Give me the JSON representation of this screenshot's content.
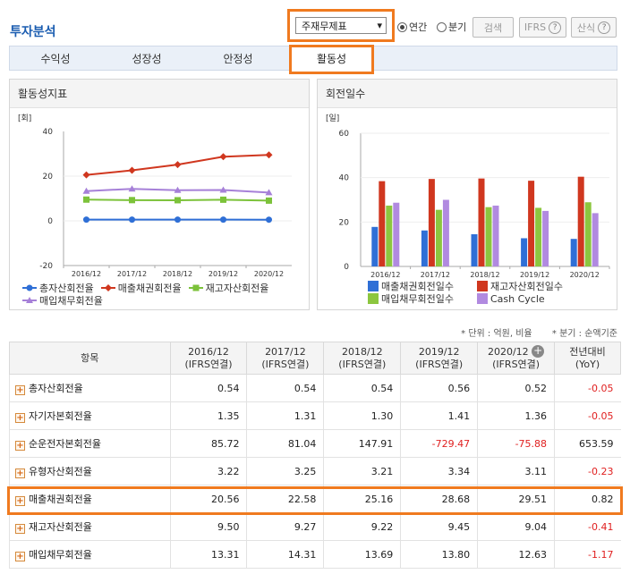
{
  "header": {
    "title": "투자분석",
    "select_value": "주재무제표",
    "radio_annual": "연간",
    "radio_quarter": "분기",
    "search_label": "검색",
    "ifrs_label": "IFRS",
    "formula_label": "산식",
    "question_mark": "?",
    "chevron": "▾"
  },
  "tabs": [
    {
      "label": "수익성"
    },
    {
      "label": "성장성"
    },
    {
      "label": "안정성"
    },
    {
      "label": "활동성"
    }
  ],
  "left_chart": {
    "title": "활동성지표",
    "unit": "[회]",
    "chart_data": {
      "type": "line",
      "categories": [
        "2016/12",
        "2017/12",
        "2018/12",
        "2019/12",
        "2020/12"
      ],
      "ylim": [
        -20,
        40
      ],
      "yticks": [
        "40",
        "20",
        "0",
        "-20"
      ],
      "series": [
        {
          "name": "총자산회전율",
          "color": "#2f6fd6",
          "marker": "circle",
          "values": [
            0.54,
            0.54,
            0.54,
            0.56,
            0.52
          ]
        },
        {
          "name": "매출채권회전율",
          "color": "#d0371f",
          "marker": "diamond",
          "values": [
            20.56,
            22.58,
            25.16,
            28.68,
            29.51
          ]
        },
        {
          "name": "재고자산회전율",
          "color": "#7cc23a",
          "marker": "square",
          "values": [
            9.5,
            9.27,
            9.22,
            9.45,
            9.04
          ]
        },
        {
          "name": "매입채무회전율",
          "color": "#a680d8",
          "marker": "triangle",
          "values": [
            13.31,
            14.31,
            13.69,
            13.8,
            12.63
          ]
        }
      ]
    }
  },
  "right_chart": {
    "title": "회전일수",
    "unit": "[일]",
    "chart_data": {
      "type": "bar",
      "categories": [
        "2016/12",
        "2017/12",
        "2018/12",
        "2019/12",
        "2020/12"
      ],
      "ylim": [
        0,
        60
      ],
      "yticks": [
        "60",
        "40",
        "20",
        "0"
      ],
      "series": [
        {
          "name": "매출채권회전일수",
          "color": "#2f6fd6",
          "values": [
            17.8,
            16.2,
            14.5,
            12.7,
            12.4
          ]
        },
        {
          "name": "재고자산회전일수",
          "color": "#d0371f",
          "values": [
            38.4,
            39.4,
            39.6,
            38.6,
            40.4
          ]
        },
        {
          "name": "매입채무회전일수",
          "color": "#8cc63f",
          "values": [
            27.4,
            25.5,
            26.7,
            26.4,
            28.9
          ]
        },
        {
          "name": "Cash Cycle",
          "color": "#b18ae0",
          "values": [
            28.7,
            30.0,
            27.4,
            25.0,
            24.0
          ]
        }
      ]
    }
  },
  "unit_note": "* 단위 : 억원, 비율       * 분기 : 순액기준",
  "table": {
    "col_item": "항목",
    "columns": [
      {
        "year": "2016/12",
        "basis": "(IFRS연결)"
      },
      {
        "year": "2017/12",
        "basis": "(IFRS연결)"
      },
      {
        "year": "2018/12",
        "basis": "(IFRS연결)"
      },
      {
        "year": "2019/12",
        "basis": "(IFRS연결)"
      },
      {
        "year": "2020/12",
        "basis": "(IFRS연결)"
      }
    ],
    "col_yoy": "전년대비",
    "col_yoy_sub": "(YoY)",
    "rows": [
      {
        "label": "총자산회전율",
        "values": [
          "0.54",
          "0.54",
          "0.54",
          "0.56",
          "0.52"
        ],
        "yoy": "-0.05"
      },
      {
        "label": "자기자본회전율",
        "values": [
          "1.35",
          "1.31",
          "1.30",
          "1.41",
          "1.36"
        ],
        "yoy": "-0.05"
      },
      {
        "label": "순운전자본회전율",
        "values": [
          "85.72",
          "81.04",
          "147.91",
          "-729.47",
          "-75.88"
        ],
        "yoy": "653.59"
      },
      {
        "label": "유형자산회전율",
        "values": [
          "3.22",
          "3.25",
          "3.21",
          "3.34",
          "3.11"
        ],
        "yoy": "-0.23"
      },
      {
        "label": "매출채권회전율",
        "values": [
          "20.56",
          "22.58",
          "25.16",
          "28.68",
          "29.51"
        ],
        "yoy": "0.82"
      },
      {
        "label": "재고자산회전율",
        "values": [
          "9.50",
          "9.27",
          "9.22",
          "9.45",
          "9.04"
        ],
        "yoy": "-0.41"
      },
      {
        "label": "매입채무회전율",
        "values": [
          "13.31",
          "14.31",
          "13.69",
          "13.80",
          "12.63"
        ],
        "yoy": "-1.17"
      }
    ]
  }
}
